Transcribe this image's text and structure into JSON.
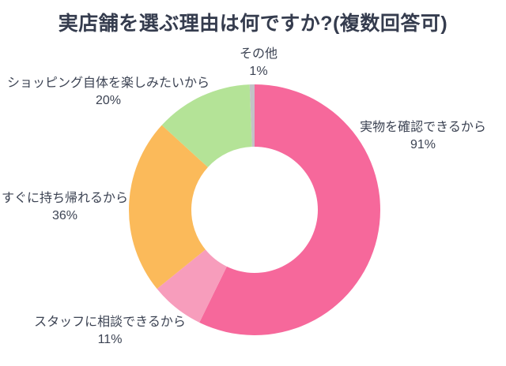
{
  "header": {
    "title": "実店舗を選ぶ理由は何ですか?(複数回答可)",
    "title_color": "#353c4e"
  },
  "chart_data": {
    "type": "pie",
    "subtype": "donut",
    "title": "実店舗を選ぶ理由は何ですか?(複数回答可)",
    "start_angle_deg": 0,
    "direction": "clockwise",
    "inner_radius_ratio": 0.5,
    "legend_position": "labels-around-chart",
    "background": "#ffffff",
    "text_color": "#3c4353",
    "segments": [
      {
        "label": "実物を確認できるから",
        "value": 91,
        "percent_text": "91%",
        "color": "#f6689b"
      },
      {
        "label": "スタッフに相談できるから",
        "value": 11,
        "percent_text": "11%",
        "color": "#f79dbc"
      },
      {
        "label": "すぐに持ち帰れるから",
        "value": 36,
        "percent_text": "36%",
        "color": "#fbba5a"
      },
      {
        "label": "ショッピング自体を楽しみたいから",
        "value": 20,
        "percent_text": "20%",
        "color": "#b4e397"
      },
      {
        "label": "その他",
        "value": 1,
        "percent_text": "1%",
        "color": "#c2c2c7"
      }
    ]
  }
}
